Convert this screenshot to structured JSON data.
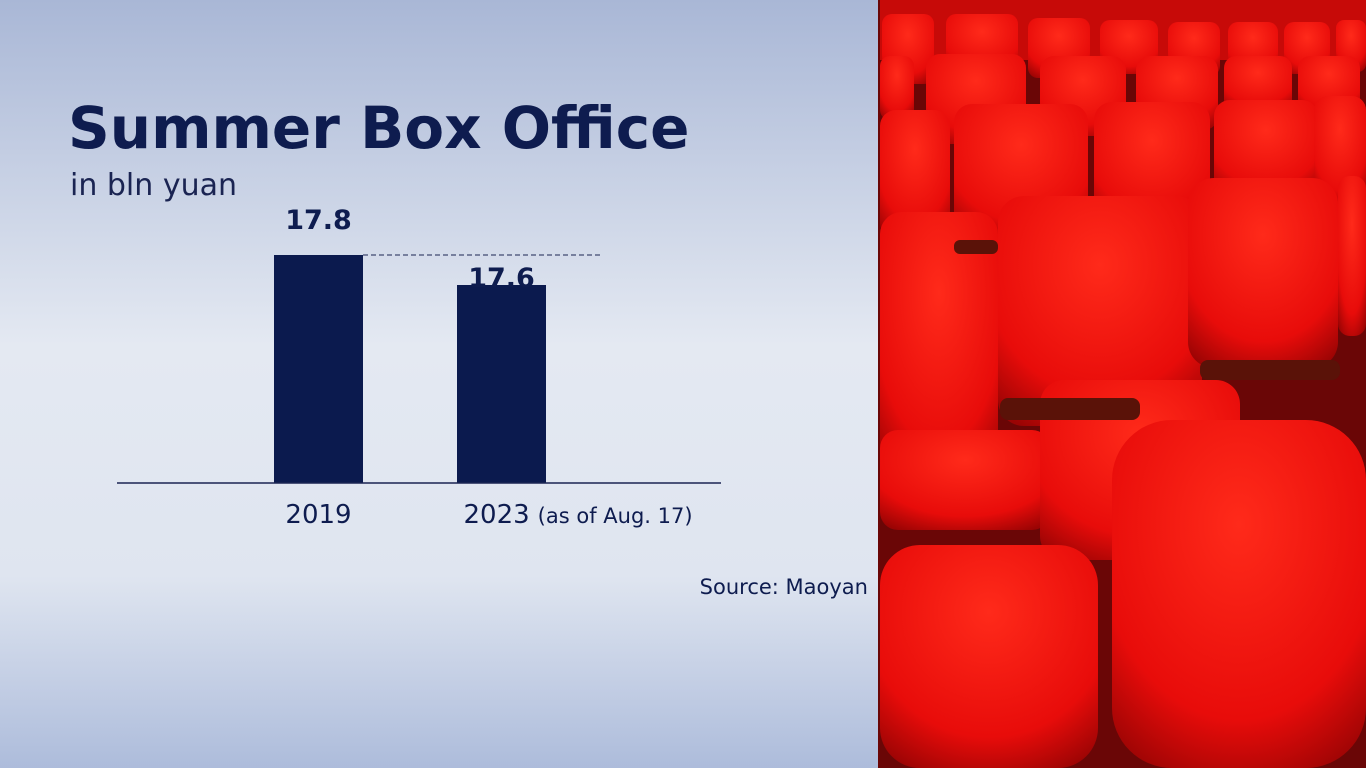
{
  "chart_data": {
    "type": "bar",
    "title": "Summer Box Office",
    "subtitle": "in bln yuan",
    "categories": [
      "2019",
      "2023"
    ],
    "category_notes": [
      null,
      "(as of Aug. 17)"
    ],
    "values": [
      17.8,
      17.6
    ],
    "color": "#0b1a4e",
    "ylim": [
      16.28,
      18.0
    ],
    "reference_line": true,
    "source": "Source: Maoyan"
  }
}
